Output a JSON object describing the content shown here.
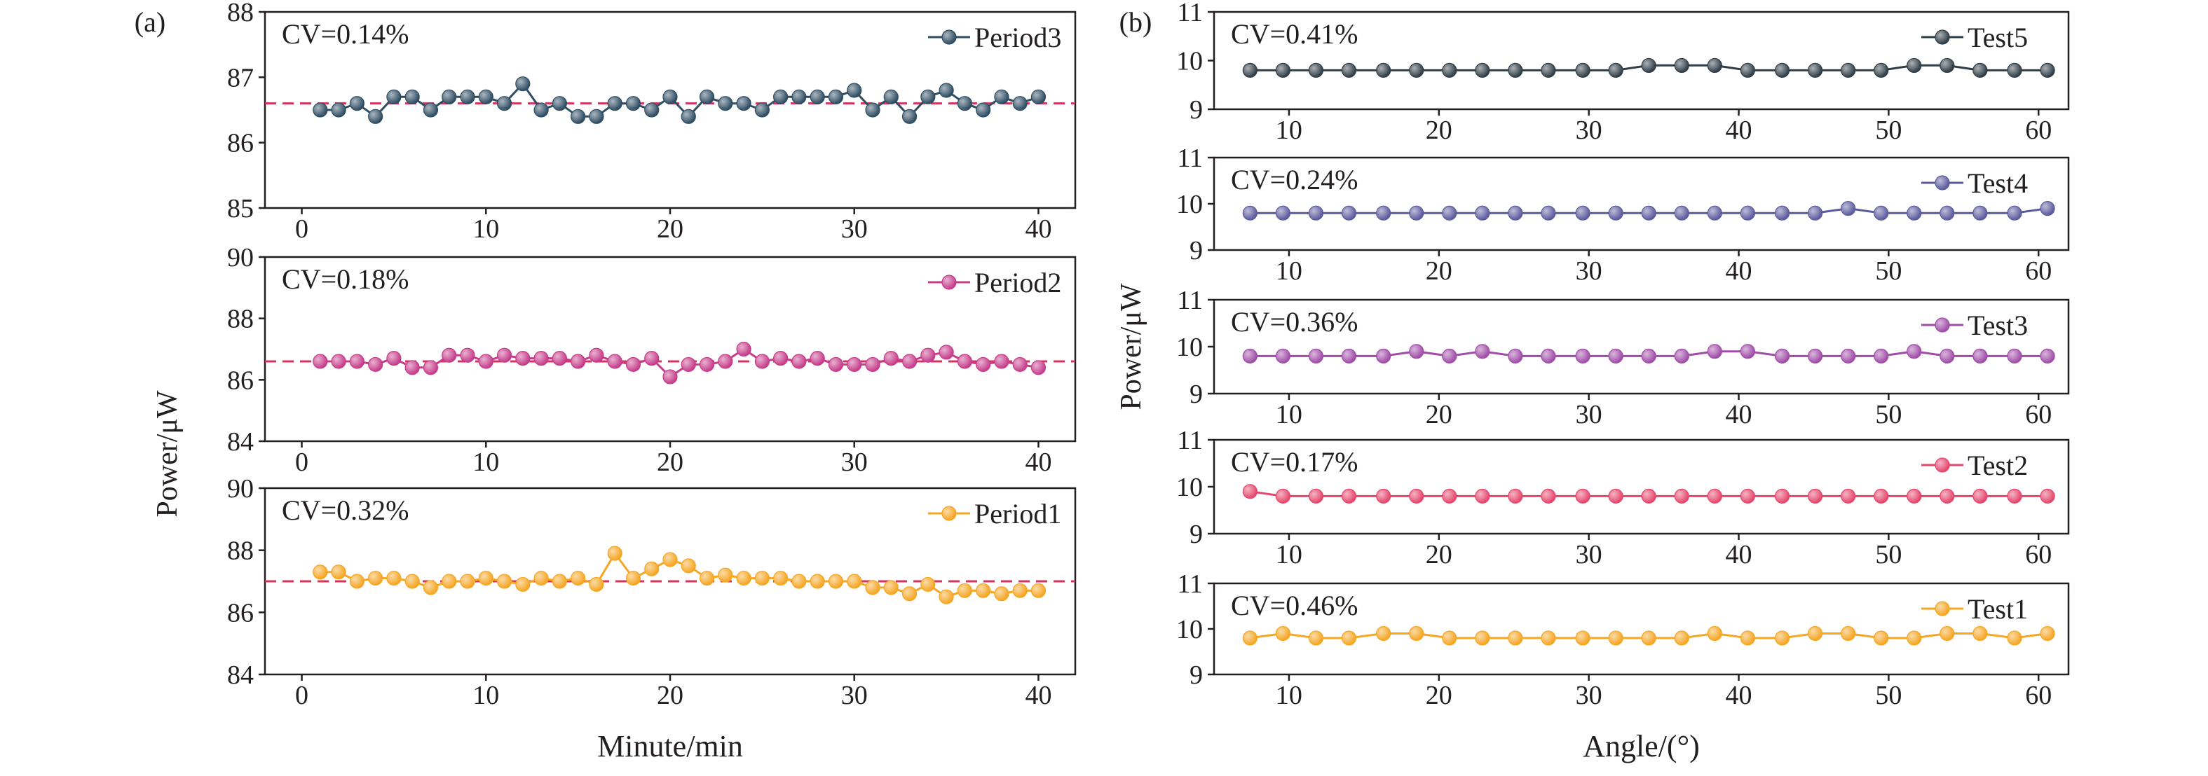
{
  "panel_labels": [
    "(a)",
    "(b)"
  ],
  "chart_data": [
    {
      "type": "line",
      "panel": "(a)",
      "title": "",
      "xlabel": "",
      "ylabel": "",
      "xlim": [
        -2,
        42
      ],
      "ylim": [
        85,
        88
      ],
      "xticks": [
        "0",
        "10",
        "20",
        "30",
        "40"
      ],
      "yticks": [
        "85",
        "86",
        "87",
        "88"
      ],
      "annotation": "CV=0.14%",
      "mean_line": 86.6,
      "grid": false,
      "legend_position": "top-right",
      "series": [
        {
          "name": "Period3",
          "color": "#2e4c62",
          "marker": "circle",
          "x": [
            1,
            2,
            3,
            4,
            5,
            6,
            7,
            8,
            9,
            10,
            11,
            12,
            13,
            14,
            15,
            16,
            17,
            18,
            19,
            20,
            21,
            22,
            23,
            24,
            25,
            26,
            27,
            28,
            29,
            30,
            31,
            32,
            33,
            34,
            35,
            36,
            37,
            38,
            39,
            40
          ],
          "values": [
            86.5,
            86.5,
            86.6,
            86.4,
            86.7,
            86.7,
            86.5,
            86.7,
            86.7,
            86.7,
            86.6,
            86.9,
            86.5,
            86.6,
            86.4,
            86.4,
            86.6,
            86.6,
            86.5,
            86.7,
            86.4,
            86.7,
            86.6,
            86.6,
            86.5,
            86.7,
            86.7,
            86.7,
            86.7,
            86.8,
            86.5,
            86.7,
            86.4,
            86.7,
            86.8,
            86.6,
            86.5,
            86.7,
            86.6,
            86.7
          ]
        }
      ]
    },
    {
      "type": "line",
      "panel": "(a)",
      "title": "",
      "xlabel": "",
      "ylabel": "",
      "xlim": [
        -2,
        42
      ],
      "ylim": [
        84,
        90
      ],
      "xticks": [
        "0",
        "10",
        "20",
        "30",
        "40"
      ],
      "yticks": [
        "84",
        "86",
        "88",
        "90"
      ],
      "annotation": "CV=0.18%",
      "mean_line": 86.6,
      "grid": false,
      "legend_position": "top-right",
      "series": [
        {
          "name": "Period2",
          "color": "#c63c8a",
          "marker": "circle",
          "x": [
            1,
            2,
            3,
            4,
            5,
            6,
            7,
            8,
            9,
            10,
            11,
            12,
            13,
            14,
            15,
            16,
            17,
            18,
            19,
            20,
            21,
            22,
            23,
            24,
            25,
            26,
            27,
            28,
            29,
            30,
            31,
            32,
            33,
            34,
            35,
            36,
            37,
            38,
            39,
            40
          ],
          "values": [
            86.6,
            86.6,
            86.6,
            86.5,
            86.7,
            86.4,
            86.4,
            86.8,
            86.8,
            86.6,
            86.8,
            86.7,
            86.7,
            86.7,
            86.6,
            86.8,
            86.6,
            86.5,
            86.7,
            86.1,
            86.5,
            86.5,
            86.6,
            87.0,
            86.6,
            86.7,
            86.6,
            86.7,
            86.5,
            86.5,
            86.5,
            86.7,
            86.6,
            86.8,
            86.9,
            86.6,
            86.5,
            86.6,
            86.5,
            86.4
          ]
        }
      ]
    },
    {
      "type": "line",
      "panel": "(a)",
      "title": "",
      "xlabel": "Minute/min",
      "ylabel": "",
      "xlim": [
        -2,
        42
      ],
      "ylim": [
        84,
        90
      ],
      "xticks": [
        "0",
        "10",
        "20",
        "30",
        "40"
      ],
      "yticks": [
        "84",
        "86",
        "88",
        "90"
      ],
      "annotation": "CV=0.32%",
      "mean_line": 87.0,
      "grid": false,
      "legend_position": "top-right",
      "series": [
        {
          "name": "Period1",
          "color": "#f5a623",
          "marker": "circle",
          "x": [
            1,
            2,
            3,
            4,
            5,
            6,
            7,
            8,
            9,
            10,
            11,
            12,
            13,
            14,
            15,
            16,
            17,
            18,
            19,
            20,
            21,
            22,
            23,
            24,
            25,
            26,
            27,
            28,
            29,
            30,
            31,
            32,
            33,
            34,
            35,
            36,
            37,
            38,
            39,
            40
          ],
          "values": [
            87.3,
            87.3,
            87.0,
            87.1,
            87.1,
            87.0,
            86.8,
            87.0,
            87.0,
            87.1,
            87.0,
            86.9,
            87.1,
            87.0,
            87.1,
            86.9,
            87.9,
            87.1,
            87.4,
            87.7,
            87.5,
            87.1,
            87.2,
            87.1,
            87.1,
            87.1,
            87.0,
            87.0,
            87.0,
            87.0,
            86.8,
            86.8,
            86.6,
            86.9,
            86.5,
            86.7,
            86.7,
            86.6,
            86.7,
            86.7
          ]
        }
      ]
    },
    {
      "type": "line",
      "panel": "(b)",
      "title": "",
      "xlabel": "",
      "ylabel": "",
      "xlim": [
        5,
        62
      ],
      "ylim": [
        9,
        11
      ],
      "xticks": [
        "10",
        "20",
        "30",
        "40",
        "50",
        "60"
      ],
      "yticks": [
        "9",
        "10",
        "11"
      ],
      "annotation": "CV=0.41%",
      "grid": false,
      "legend_position": "top-right",
      "series": [
        {
          "name": "Test5",
          "color": "#2f3d47",
          "marker": "circle",
          "x": [
            7.4,
            9.6,
            11.8,
            14.0,
            16.3,
            18.5,
            20.7,
            22.9,
            25.1,
            27.3,
            29.6,
            31.8,
            34.0,
            36.2,
            38.4,
            40.6,
            42.9,
            45.1,
            47.3,
            49.5,
            51.7,
            53.9,
            56.1,
            58.4,
            60.6
          ],
          "values": [
            9.8,
            9.8,
            9.8,
            9.8,
            9.8,
            9.8,
            9.8,
            9.8,
            9.8,
            9.8,
            9.8,
            9.8,
            9.9,
            9.9,
            9.9,
            9.8,
            9.8,
            9.8,
            9.8,
            9.8,
            9.9,
            9.9,
            9.8,
            9.8,
            9.8
          ]
        }
      ]
    },
    {
      "type": "line",
      "panel": "(b)",
      "title": "",
      "xlabel": "",
      "ylabel": "",
      "xlim": [
        5,
        62
      ],
      "ylim": [
        9,
        11
      ],
      "xticks": [
        "10",
        "20",
        "30",
        "40",
        "50",
        "60"
      ],
      "yticks": [
        "9",
        "10",
        "11"
      ],
      "annotation": "CV=0.24%",
      "grid": false,
      "legend_position": "top-right",
      "series": [
        {
          "name": "Test4",
          "color": "#5a5a9e",
          "marker": "circle",
          "x": [
            7.4,
            9.6,
            11.8,
            14.0,
            16.3,
            18.5,
            20.7,
            22.9,
            25.1,
            27.3,
            29.6,
            31.8,
            34.0,
            36.2,
            38.4,
            40.6,
            42.9,
            45.1,
            47.3,
            49.5,
            51.7,
            53.9,
            56.1,
            58.4,
            60.6
          ],
          "values": [
            9.8,
            9.8,
            9.8,
            9.8,
            9.8,
            9.8,
            9.8,
            9.8,
            9.8,
            9.8,
            9.8,
            9.8,
            9.8,
            9.8,
            9.8,
            9.8,
            9.8,
            9.8,
            9.9,
            9.8,
            9.8,
            9.8,
            9.8,
            9.8,
            9.9
          ]
        }
      ]
    },
    {
      "type": "line",
      "panel": "(b)",
      "title": "",
      "xlabel": "",
      "ylabel": "Power/μW",
      "xlim": [
        5,
        62
      ],
      "ylim": [
        9,
        11
      ],
      "xticks": [
        "10",
        "20",
        "30",
        "40",
        "50",
        "60"
      ],
      "yticks": [
        "9",
        "10",
        "11"
      ],
      "annotation": "CV=0.36%",
      "grid": false,
      "legend_position": "top-right",
      "series": [
        {
          "name": "Test3",
          "color": "#a04ca8",
          "marker": "circle",
          "x": [
            7.4,
            9.6,
            11.8,
            14.0,
            16.3,
            18.5,
            20.7,
            22.9,
            25.1,
            27.3,
            29.6,
            31.8,
            34.0,
            36.2,
            38.4,
            40.6,
            42.9,
            45.1,
            47.3,
            49.5,
            51.7,
            53.9,
            56.1,
            58.4,
            60.6
          ],
          "values": [
            9.8,
            9.8,
            9.8,
            9.8,
            9.8,
            9.9,
            9.8,
            9.9,
            9.8,
            9.8,
            9.8,
            9.8,
            9.8,
            9.8,
            9.9,
            9.9,
            9.8,
            9.8,
            9.8,
            9.8,
            9.9,
            9.8,
            9.8,
            9.8,
            9.8
          ]
        }
      ]
    },
    {
      "type": "line",
      "panel": "(b)",
      "title": "",
      "xlabel": "",
      "ylabel": "",
      "xlim": [
        5,
        62
      ],
      "ylim": [
        9,
        11
      ],
      "xticks": [
        "10",
        "20",
        "30",
        "40",
        "50",
        "60"
      ],
      "yticks": [
        "9",
        "10",
        "11"
      ],
      "annotation": "CV=0.17%",
      "grid": false,
      "legend_position": "top-right",
      "series": [
        {
          "name": "Test2",
          "color": "#e5466c",
          "marker": "circle",
          "x": [
            7.4,
            9.6,
            11.8,
            14.0,
            16.3,
            18.5,
            20.7,
            22.9,
            25.1,
            27.3,
            29.6,
            31.8,
            34.0,
            36.2,
            38.4,
            40.6,
            42.9,
            45.1,
            47.3,
            49.5,
            51.7,
            53.9,
            56.1,
            58.4,
            60.6
          ],
          "values": [
            9.9,
            9.8,
            9.8,
            9.8,
            9.8,
            9.8,
            9.8,
            9.8,
            9.8,
            9.8,
            9.8,
            9.8,
            9.8,
            9.8,
            9.8,
            9.8,
            9.8,
            9.8,
            9.8,
            9.8,
            9.8,
            9.8,
            9.8,
            9.8,
            9.8
          ]
        }
      ]
    },
    {
      "type": "line",
      "panel": "(b)",
      "title": "",
      "xlabel": "Angle/(°)",
      "ylabel": "",
      "xlim": [
        5,
        62
      ],
      "ylim": [
        9,
        11
      ],
      "xticks": [
        "10",
        "20",
        "30",
        "40",
        "50",
        "60"
      ],
      "yticks": [
        "9",
        "10",
        "11"
      ],
      "annotation": "CV=0.46%",
      "grid": false,
      "legend_position": "top-right",
      "series": [
        {
          "name": "Test1",
          "color": "#f5a623",
          "marker": "circle",
          "x": [
            7.4,
            9.6,
            11.8,
            14.0,
            16.3,
            18.5,
            20.7,
            22.9,
            25.1,
            27.3,
            29.6,
            31.8,
            34.0,
            36.2,
            38.4,
            40.6,
            42.9,
            45.1,
            47.3,
            49.5,
            51.7,
            53.9,
            56.1,
            58.4,
            60.6
          ],
          "values": [
            9.8,
            9.9,
            9.8,
            9.8,
            9.9,
            9.9,
            9.8,
            9.8,
            9.8,
            9.8,
            9.8,
            9.8,
            9.8,
            9.8,
            9.9,
            9.8,
            9.8,
            9.9,
            9.9,
            9.8,
            9.8,
            9.9,
            9.9,
            9.8,
            9.9
          ]
        }
      ]
    }
  ],
  "ylabel_a": "Power/μW"
}
